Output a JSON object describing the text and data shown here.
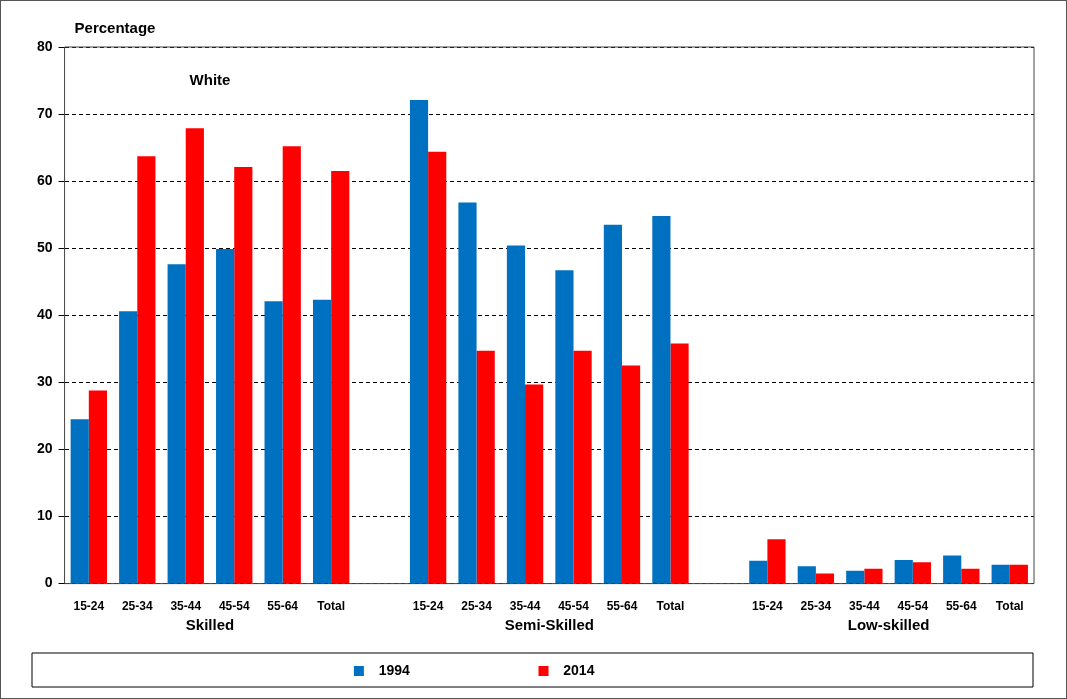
{
  "chart_data": {
    "type": "bar",
    "title": "White",
    "ylabel": "Percentage",
    "categories": [
      "15-24",
      "25-34",
      "35-44",
      "45-54",
      "55-64",
      "Total",
      null,
      "15-24",
      "25-34",
      "35-44",
      "45-54",
      "55-64",
      "Total",
      null,
      "15-24",
      "25-34",
      "35-44",
      "45-54",
      "55-64",
      "Total"
    ],
    "series": [
      {
        "name": "1994",
        "color": "#0070c0",
        "values": [
          24.5,
          40.6,
          47.6,
          49.9,
          42.1,
          42.3,
          null,
          72.1,
          56.8,
          50.4,
          46.7,
          53.5,
          54.8,
          null,
          3.4,
          2.6,
          1.9,
          3.5,
          4.2,
          2.8
        ]
      },
      {
        "name": "2014",
        "color": "#ff0000",
        "values": [
          28.8,
          63.7,
          67.9,
          62.1,
          65.2,
          61.5,
          null,
          64.4,
          34.7,
          29.7,
          34.7,
          32.5,
          35.8,
          null,
          6.6,
          1.5,
          2.2,
          3.2,
          2.2,
          2.8
        ]
      }
    ],
    "annotations": [
      "Skilled",
      "Semi-Skilled",
      "Low-skilled"
    ],
    "ylim": [
      0,
      80
    ],
    "yticks": [
      0,
      10,
      20,
      30,
      40,
      50,
      60,
      70,
      80
    ],
    "grid": "y",
    "legend": "bottom"
  }
}
